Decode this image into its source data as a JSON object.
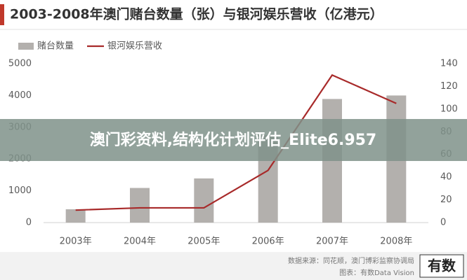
{
  "chart_data": {
    "type": "combo",
    "title": "2003-2008年澳门赌台数量（张）与银河娱乐营收（亿港元）",
    "categories": [
      "2003年",
      "2004年",
      "2005年",
      "2006年",
      "2007年",
      "2008年"
    ],
    "series": [
      {
        "name": "赌台数量",
        "type": "bar",
        "color": "#b3b0ad",
        "values": [
          420,
          1090,
          1390,
          2760,
          3890,
          4000
        ]
      },
      {
        "name": "银河娱乐营收",
        "type": "line",
        "color": "#a82a2a",
        "axis": "y2",
        "values": [
          11,
          13,
          13,
          46,
          130,
          105
        ]
      }
    ],
    "ylim": [
      0,
      5000
    ],
    "yticks": [
      0,
      1000,
      2000,
      3000,
      4000,
      5000
    ],
    "y2lim": [
      0,
      140
    ],
    "y2ticks": [
      0,
      20,
      40,
      60,
      80,
      100,
      120,
      140
    ],
    "grid": false
  },
  "overlay": {
    "text": "澳门彩资料,结构化计划评估_Elite6.957"
  },
  "footer": {
    "source": "数据来源：同花顺，澳门博彩监察协调局",
    "credit": "图表：有数Data Vision",
    "logo": "有数"
  }
}
